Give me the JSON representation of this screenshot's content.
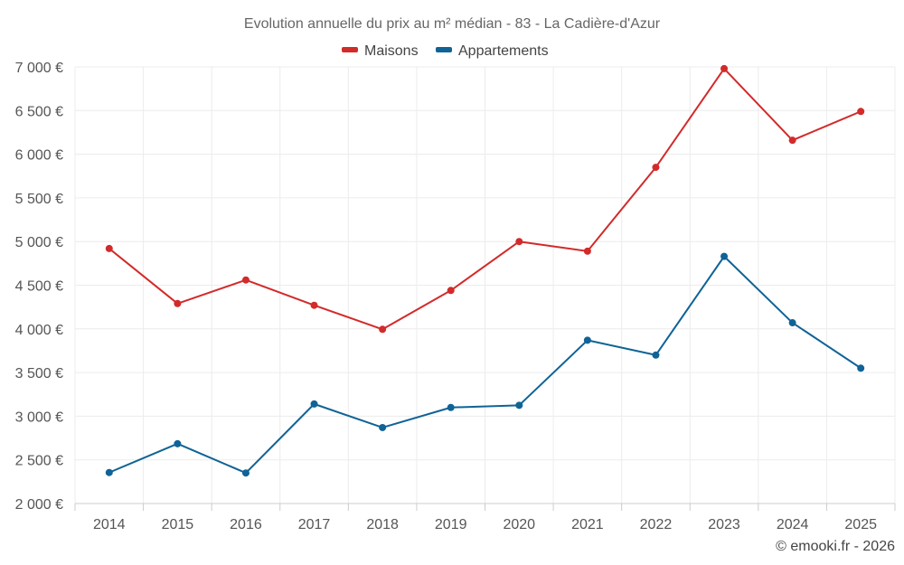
{
  "chart_data": {
    "type": "line",
    "title": "Evolution annuelle du prix au m² médian - 83 - La Cadière-d'Azur",
    "categories": [
      "2014",
      "2015",
      "2016",
      "2017",
      "2018",
      "2019",
      "2020",
      "2021",
      "2022",
      "2023",
      "2024",
      "2025"
    ],
    "series": [
      {
        "name": "Maisons",
        "color": "#d32a2a",
        "values": [
          4920,
          4290,
          4560,
          4270,
          3995,
          4440,
          5000,
          4890,
          5850,
          6980,
          6160,
          6490
        ]
      },
      {
        "name": "Appartements",
        "color": "#0f6396",
        "values": [
          2355,
          2685,
          2350,
          3140,
          2870,
          3100,
          3125,
          3870,
          3700,
          4830,
          4070,
          3550
        ]
      }
    ],
    "ylim": [
      2000,
      7000
    ],
    "yticks": [
      2000,
      2500,
      3000,
      3500,
      4000,
      4500,
      5000,
      5500,
      6000,
      6500,
      7000
    ],
    "ytick_labels": [
      "2 000 €",
      "2 500 €",
      "3 000 €",
      "3 500 €",
      "4 000 €",
      "4 500 €",
      "5 000 €",
      "5 500 €",
      "6 000 €",
      "6 500 €",
      "7 000 €"
    ],
    "xlabel": "",
    "ylabel": "",
    "grid": true,
    "legend_position": "top-center",
    "credit": "© emooki.fr - 2026"
  }
}
